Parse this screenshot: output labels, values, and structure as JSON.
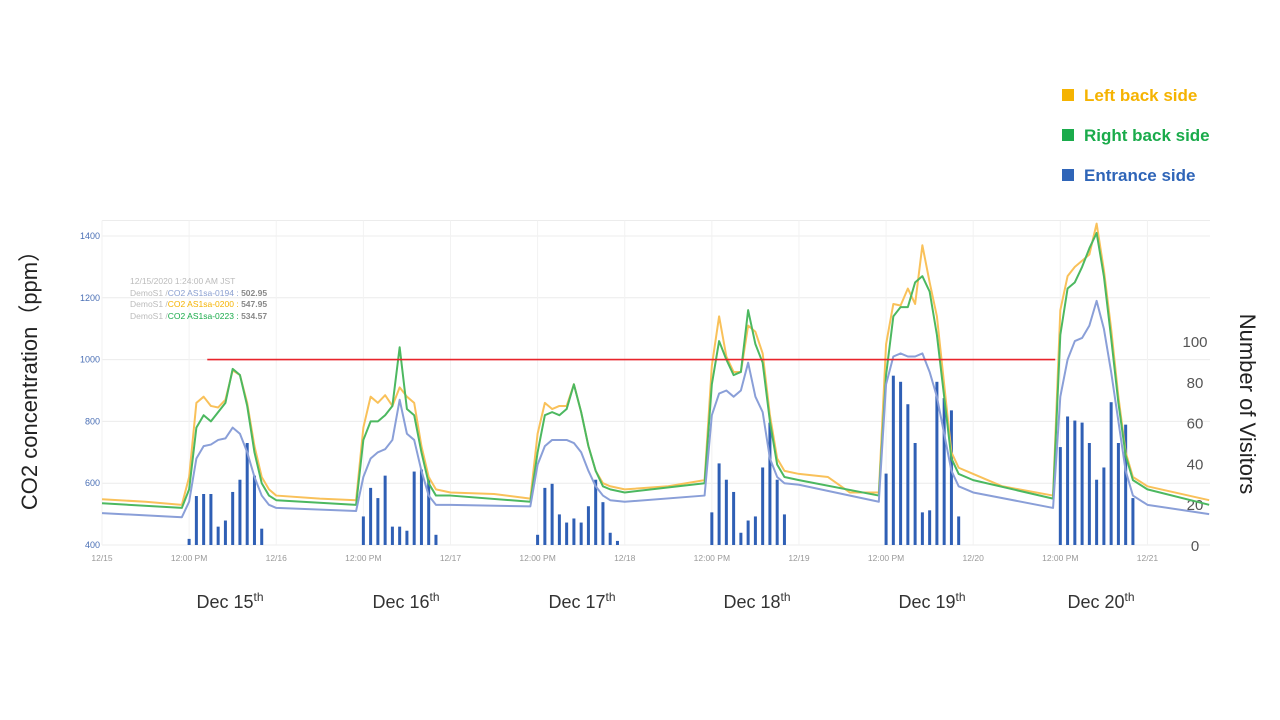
{
  "legend": [
    {
      "label": "Left back side",
      "color": "#f5b301"
    },
    {
      "label": "Right back side",
      "color": "#1aab4b"
    },
    {
      "label": "Entrance side",
      "color": "#2f65b8"
    }
  ],
  "left_axis_title": "CO2 concentration（ppm）",
  "right_axis_title": "Number of Visitors",
  "tooltip": {
    "time": "12/15/2020 1:24:00 AM JST",
    "rows": [
      {
        "prefix": "DemoS1 /",
        "name": "CO2 AS1sa-0194 :",
        "value": "502.95",
        "color": "#8a9fd0"
      },
      {
        "prefix": "DemoS1 /",
        "name": "CO2 AS1sa-0200 :",
        "value": "547.95",
        "color": "#f5b301"
      },
      {
        "prefix": "DemoS1 /",
        "name": "CO2 AS1sa-0223 :",
        "value": "534.57",
        "color": "#1aab4b"
      }
    ]
  },
  "dates": [
    {
      "label": "Dec 15",
      "sup": "th"
    },
    {
      "label": "Dec 16",
      "sup": "th"
    },
    {
      "label": "Dec 17",
      "sup": "th"
    },
    {
      "label": "Dec 18",
      "sup": "th"
    },
    {
      "label": "Dec 19",
      "sup": "th"
    },
    {
      "label": "Dec 20",
      "sup": "th"
    }
  ],
  "chart_data": {
    "type": "line+bar",
    "x_unit": "hours since 12/15 00:00",
    "x_ticks": [
      {
        "h": 0,
        "label": "12/15"
      },
      {
        "h": 12,
        "label": "12:00 PM"
      },
      {
        "h": 24,
        "label": "12/16"
      },
      {
        "h": 36,
        "label": "12:00 PM"
      },
      {
        "h": 48,
        "label": "12/17"
      },
      {
        "h": 60,
        "label": "12:00 PM"
      },
      {
        "h": 72,
        "label": "12/18"
      },
      {
        "h": 84,
        "label": "12:00 PM"
      },
      {
        "h": 96,
        "label": "12/19"
      },
      {
        "h": 108,
        "label": "12:00 PM"
      },
      {
        "h": 120,
        "label": "12/20"
      },
      {
        "h": 132,
        "label": "12:00 PM"
      },
      {
        "h": 144,
        "label": "12/21"
      }
    ],
    "left_ylim": [
      400,
      1450
    ],
    "left_ticks": [
      "400",
      "600",
      "800",
      "1000",
      "1200",
      "1400"
    ],
    "right_ylim": [
      0,
      100
    ],
    "right_ticks": [
      "0",
      "20",
      "40",
      "60",
      "80",
      "100"
    ],
    "threshold": {
      "value": 1000,
      "from_h": 14.5,
      "to_h": 131.3,
      "color": "#e8242b"
    },
    "series": [
      {
        "name": "Left back side",
        "color": "#f9c15a",
        "points": [
          [
            0,
            548
          ],
          [
            6,
            540
          ],
          [
            11,
            530
          ],
          [
            12,
            620
          ],
          [
            13,
            860
          ],
          [
            14,
            880
          ],
          [
            15,
            850
          ],
          [
            16,
            845
          ],
          [
            17,
            870
          ],
          [
            18,
            965
          ],
          [
            19,
            950
          ],
          [
            20,
            860
          ],
          [
            21,
            720
          ],
          [
            22,
            620
          ],
          [
            23,
            580
          ],
          [
            24,
            560
          ],
          [
            30,
            550
          ],
          [
            35,
            545
          ],
          [
            36,
            780
          ],
          [
            37,
            880
          ],
          [
            38,
            860
          ],
          [
            39,
            885
          ],
          [
            40,
            850
          ],
          [
            41,
            910
          ],
          [
            42,
            880
          ],
          [
            43,
            860
          ],
          [
            44,
            720
          ],
          [
            45,
            620
          ],
          [
            46,
            580
          ],
          [
            48,
            570
          ],
          [
            54,
            565
          ],
          [
            59,
            550
          ],
          [
            60,
            760
          ],
          [
            61,
            860
          ],
          [
            62,
            840
          ],
          [
            63,
            850
          ],
          [
            64,
            850
          ],
          [
            65,
            920
          ],
          [
            66,
            830
          ],
          [
            67,
            720
          ],
          [
            68,
            640
          ],
          [
            69,
            600
          ],
          [
            70,
            590
          ],
          [
            72,
            580
          ],
          [
            78,
            590
          ],
          [
            83,
            610
          ],
          [
            84,
            980
          ],
          [
            85,
            1140
          ],
          [
            86,
            1010
          ],
          [
            87,
            960
          ],
          [
            88,
            960
          ],
          [
            89,
            1110
          ],
          [
            90,
            1090
          ],
          [
            91,
            1020
          ],
          [
            92,
            820
          ],
          [
            93,
            680
          ],
          [
            94,
            640
          ],
          [
            96,
            630
          ],
          [
            100,
            620
          ],
          [
            103,
            570
          ],
          [
            107,
            570
          ],
          [
            108,
            1050
          ],
          [
            109,
            1180
          ],
          [
            110,
            1175
          ],
          [
            111,
            1230
          ],
          [
            112,
            1180
          ],
          [
            113,
            1370
          ],
          [
            114,
            1250
          ],
          [
            115,
            1140
          ],
          [
            116,
            920
          ],
          [
            117,
            700
          ],
          [
            118,
            650
          ],
          [
            120,
            630
          ],
          [
            124,
            590
          ],
          [
            131,
            560
          ],
          [
            132,
            1160
          ],
          [
            133,
            1270
          ],
          [
            134,
            1300
          ],
          [
            135,
            1320
          ],
          [
            136,
            1340
          ],
          [
            137,
            1440
          ],
          [
            138,
            1290
          ],
          [
            139,
            1100
          ],
          [
            140,
            880
          ],
          [
            141,
            700
          ],
          [
            142,
            620
          ],
          [
            144,
            590
          ],
          [
            152.5,
            545
          ]
        ]
      },
      {
        "name": "Right back side",
        "color": "#4cb860",
        "points": [
          [
            0,
            535
          ],
          [
            11,
            520
          ],
          [
            12,
            580
          ],
          [
            13,
            780
          ],
          [
            14,
            820
          ],
          [
            15,
            800
          ],
          [
            16,
            830
          ],
          [
            17,
            860
          ],
          [
            18,
            970
          ],
          [
            19,
            950
          ],
          [
            20,
            850
          ],
          [
            21,
            700
          ],
          [
            22,
            600
          ],
          [
            23,
            560
          ],
          [
            24,
            545
          ],
          [
            35,
            530
          ],
          [
            36,
            740
          ],
          [
            37,
            800
          ],
          [
            38,
            800
          ],
          [
            39,
            820
          ],
          [
            40,
            850
          ],
          [
            41,
            1040
          ],
          [
            42,
            840
          ],
          [
            43,
            820
          ],
          [
            44,
            700
          ],
          [
            45,
            600
          ],
          [
            46,
            560
          ],
          [
            48,
            560
          ],
          [
            59,
            540
          ],
          [
            60,
            700
          ],
          [
            61,
            820
          ],
          [
            62,
            830
          ],
          [
            63,
            820
          ],
          [
            64,
            840
          ],
          [
            65,
            920
          ],
          [
            66,
            830
          ],
          [
            67,
            720
          ],
          [
            68,
            640
          ],
          [
            69,
            590
          ],
          [
            70,
            580
          ],
          [
            72,
            570
          ],
          [
            83,
            600
          ],
          [
            84,
            920
          ],
          [
            85,
            1060
          ],
          [
            86,
            1000
          ],
          [
            87,
            950
          ],
          [
            88,
            960
          ],
          [
            89,
            1160
          ],
          [
            90,
            1050
          ],
          [
            91,
            990
          ],
          [
            92,
            800
          ],
          [
            93,
            660
          ],
          [
            94,
            620
          ],
          [
            96,
            610
          ],
          [
            107,
            560
          ],
          [
            108,
            950
          ],
          [
            109,
            1140
          ],
          [
            110,
            1170
          ],
          [
            111,
            1170
          ],
          [
            112,
            1250
          ],
          [
            113,
            1270
          ],
          [
            114,
            1220
          ],
          [
            115,
            1080
          ],
          [
            116,
            880
          ],
          [
            117,
            680
          ],
          [
            118,
            630
          ],
          [
            120,
            610
          ],
          [
            131,
            550
          ],
          [
            132,
            1080
          ],
          [
            133,
            1230
          ],
          [
            134,
            1250
          ],
          [
            135,
            1300
          ],
          [
            136,
            1360
          ],
          [
            137,
            1410
          ],
          [
            138,
            1270
          ],
          [
            139,
            1070
          ],
          [
            140,
            860
          ],
          [
            141,
            690
          ],
          [
            142,
            610
          ],
          [
            144,
            580
          ],
          [
            152.5,
            530
          ]
        ]
      },
      {
        "name": "Entrance side",
        "color": "#8a9fd8",
        "points": [
          [
            0,
            503
          ],
          [
            11,
            490
          ],
          [
            12,
            540
          ],
          [
            13,
            680
          ],
          [
            14,
            720
          ],
          [
            15,
            725
          ],
          [
            16,
            740
          ],
          [
            17,
            745
          ],
          [
            18,
            780
          ],
          [
            19,
            760
          ],
          [
            20,
            700
          ],
          [
            21,
            620
          ],
          [
            22,
            560
          ],
          [
            23,
            530
          ],
          [
            24,
            520
          ],
          [
            35,
            510
          ],
          [
            36,
            620
          ],
          [
            37,
            680
          ],
          [
            38,
            700
          ],
          [
            39,
            710
          ],
          [
            40,
            740
          ],
          [
            41,
            870
          ],
          [
            42,
            760
          ],
          [
            43,
            740
          ],
          [
            44,
            640
          ],
          [
            45,
            560
          ],
          [
            46,
            530
          ],
          [
            48,
            530
          ],
          [
            59,
            525
          ],
          [
            60,
            660
          ],
          [
            61,
            720
          ],
          [
            62,
            740
          ],
          [
            63,
            740
          ],
          [
            64,
            740
          ],
          [
            65,
            730
          ],
          [
            66,
            700
          ],
          [
            67,
            640
          ],
          [
            68,
            590
          ],
          [
            69,
            560
          ],
          [
            70,
            545
          ],
          [
            72,
            540
          ],
          [
            83,
            560
          ],
          [
            84,
            820
          ],
          [
            85,
            890
          ],
          [
            86,
            900
          ],
          [
            87,
            880
          ],
          [
            88,
            900
          ],
          [
            89,
            990
          ],
          [
            90,
            880
          ],
          [
            91,
            830
          ],
          [
            92,
            680
          ],
          [
            93,
            620
          ],
          [
            94,
            600
          ],
          [
            96,
            595
          ],
          [
            107,
            540
          ],
          [
            108,
            920
          ],
          [
            109,
            1010
          ],
          [
            110,
            1020
          ],
          [
            111,
            1010
          ],
          [
            112,
            1010
          ],
          [
            113,
            1020
          ],
          [
            114,
            960
          ],
          [
            115,
            880
          ],
          [
            116,
            760
          ],
          [
            117,
            640
          ],
          [
            118,
            590
          ],
          [
            120,
            570
          ],
          [
            131,
            520
          ],
          [
            132,
            880
          ],
          [
            133,
            1000
          ],
          [
            134,
            1060
          ],
          [
            135,
            1070
          ],
          [
            136,
            1110
          ],
          [
            137,
            1190
          ],
          [
            138,
            1100
          ],
          [
            139,
            960
          ],
          [
            140,
            800
          ],
          [
            141,
            640
          ],
          [
            142,
            560
          ],
          [
            144,
            530
          ],
          [
            152.5,
            500
          ]
        ]
      }
    ],
    "visitors": {
      "color": "#2f5fb5",
      "start_hour_each_day": 12,
      "days": [
        [
          3,
          24,
          25,
          25,
          9,
          12,
          26,
          32,
          50,
          34,
          8
        ],
        [
          14,
          28,
          23,
          34,
          9,
          9,
          7,
          36,
          37,
          33,
          5
        ],
        [
          5,
          28,
          30,
          15,
          11,
          13,
          11,
          19,
          32,
          21,
          6,
          2
        ],
        [
          16,
          40,
          32,
          26,
          6,
          12,
          14,
          38,
          60,
          32,
          15
        ],
        [
          35,
          83,
          80,
          69,
          50,
          16,
          17,
          80,
          72,
          66,
          14
        ],
        [
          48,
          63,
          61,
          60,
          50,
          32,
          38,
          70,
          50,
          59,
          23
        ]
      ]
    }
  }
}
